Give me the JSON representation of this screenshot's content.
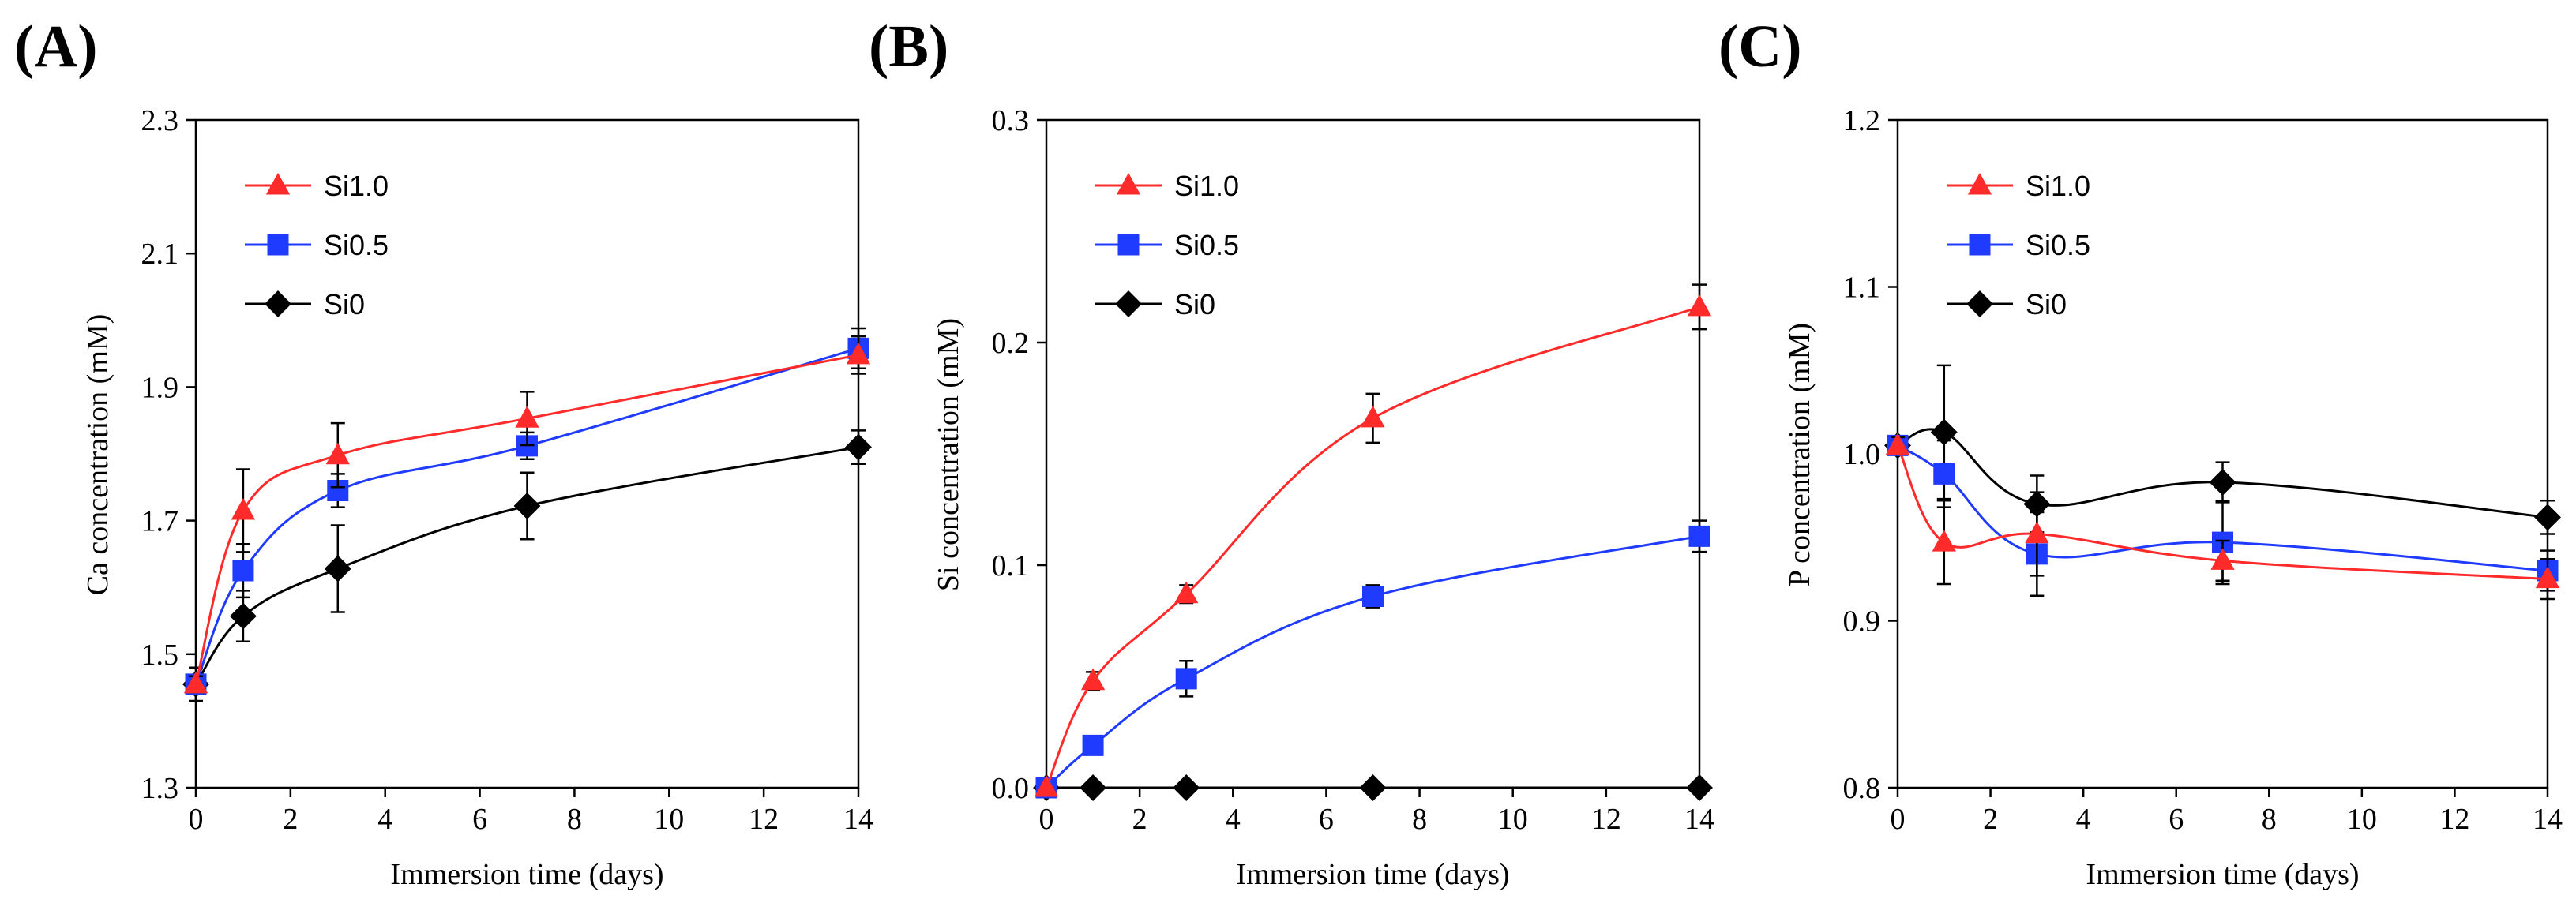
{
  "figure": {
    "panels": [
      "(A)",
      "(B)",
      "(C)"
    ]
  },
  "chart_data": [
    {
      "type": "line",
      "panel_label": "(A)",
      "xlabel": "Immersion time (days)",
      "ylabel": "Ca concentration (mM)",
      "xlim": [
        0,
        14
      ],
      "ylim": [
        1.3,
        2.3
      ],
      "xticks": [
        0,
        2,
        4,
        6,
        8,
        10,
        12,
        14
      ],
      "xtick_labels": [
        "0",
        "2",
        "4",
        "6",
        "8",
        "10",
        "12",
        "14"
      ],
      "yticks": [
        1.3,
        1.5,
        1.7,
        1.9,
        2.1,
        2.3
      ],
      "ytick_labels": [
        "1.3",
        "1.5",
        "1.7",
        "1.9",
        "2.1",
        "2.3"
      ],
      "grid": false,
      "legend_position": "top-left",
      "x": [
        0,
        1,
        3,
        7,
        14
      ],
      "series": [
        {
          "name": "Si1.0",
          "color": "#ff2a2a",
          "marker": "triangle",
          "values": [
            1.455,
            1.715,
            1.798,
            1.853,
            1.948
          ],
          "errors": [
            0.012,
            0.062,
            0.048,
            0.04,
            0.028
          ]
        },
        {
          "name": "Si0.5",
          "color": "#1f3bff",
          "marker": "square",
          "values": [
            1.455,
            1.625,
            1.745,
            1.812,
            1.958
          ],
          "errors": [
            0.012,
            0.04,
            0.025,
            0.02,
            0.03
          ]
        },
        {
          "name": "Si0",
          "color": "#000000",
          "marker": "diamond",
          "values": [
            1.455,
            1.557,
            1.628,
            1.722,
            1.81
          ],
          "errors": [
            0.025,
            0.038,
            0.065,
            0.05,
            0.025
          ]
        }
      ]
    },
    {
      "type": "line",
      "panel_label": "(B)",
      "xlabel": "Immersion time (days)",
      "ylabel": "Si concentration (mM)",
      "xlim": [
        0,
        14
      ],
      "ylim": [
        0,
        0.3
      ],
      "xticks": [
        0,
        2,
        4,
        6,
        8,
        10,
        12,
        14
      ],
      "xtick_labels": [
        "0",
        "2",
        "4",
        "6",
        "8",
        "10",
        "12",
        "14"
      ],
      "yticks": [
        0,
        0.1,
        0.2,
        0.3
      ],
      "ytick_labels": [
        "0.0",
        "0.1",
        "0.2",
        "0.3"
      ],
      "grid": false,
      "legend_position": "top-left",
      "x": [
        0,
        1,
        3,
        7,
        14
      ],
      "series": [
        {
          "name": "Si1.0",
          "color": "#ff2a2a",
          "marker": "triangle",
          "values": [
            0,
            0.048,
            0.087,
            0.166,
            0.216
          ],
          "errors": [
            0,
            0.004,
            0.004,
            0.011,
            0.01
          ]
        },
        {
          "name": "Si0.5",
          "color": "#1f3bff",
          "marker": "square",
          "values": [
            0,
            0.019,
            0.049,
            0.086,
            0.113
          ],
          "errors": [
            0,
            0.002,
            0.008,
            0.005,
            0.007
          ]
        },
        {
          "name": "Si0",
          "color": "#000000",
          "marker": "diamond",
          "values": [
            0,
            0,
            0,
            0,
            0
          ],
          "errors": [
            0,
            0,
            0,
            0,
            0
          ]
        }
      ]
    },
    {
      "type": "line",
      "panel_label": "(C)",
      "xlabel": "Immersion time (days)",
      "ylabel": "P concentration (mM)",
      "xlim": [
        0,
        14
      ],
      "ylim": [
        0.8,
        1.2
      ],
      "xticks": [
        0,
        2,
        4,
        6,
        8,
        10,
        12,
        14
      ],
      "xtick_labels": [
        "0",
        "2",
        "4",
        "6",
        "8",
        "10",
        "12",
        "14"
      ],
      "yticks": [
        0.8,
        0.9,
        1.0,
        1.1,
        1.2
      ],
      "ytick_labels": [
        "0.8",
        "0.9",
        "1.0",
        "1.1",
        "1.2"
      ],
      "grid": false,
      "legend_position": "top-left",
      "x": [
        0,
        1,
        3,
        7,
        14
      ],
      "series": [
        {
          "name": "Si1.0",
          "color": "#ff2a2a",
          "marker": "triangle",
          "values": [
            1.005,
            0.947,
            0.952,
            0.936,
            0.925
          ],
          "errors": [
            0.005,
            0.025,
            0.025,
            0.012,
            0.012
          ]
        },
        {
          "name": "Si0.5",
          "color": "#1f3bff",
          "marker": "square",
          "values": [
            1.005,
            0.988,
            0.94,
            0.947,
            0.93
          ],
          "errors": [
            0.005,
            0.02,
            0.025,
            0.025,
            0.012
          ]
        },
        {
          "name": "Si0",
          "color": "#000000",
          "marker": "diamond",
          "values": [
            1.005,
            1.013,
            0.97,
            0.983,
            0.962
          ],
          "errors": [
            0.005,
            0.04,
            0.017,
            0.012,
            0.01
          ]
        }
      ]
    }
  ]
}
